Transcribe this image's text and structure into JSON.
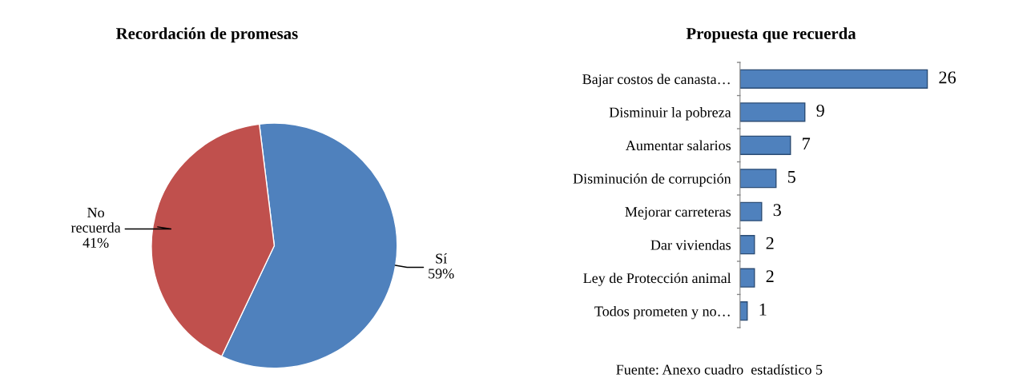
{
  "chart_data": [
    {
      "type": "pie",
      "title": "Recordación de promesas",
      "categories": [
        "Sí",
        "No recuerda"
      ],
      "values": [
        59,
        41
      ],
      "colors": [
        "#4f81bd",
        "#c0504d"
      ],
      "value_labels": [
        "59%",
        "41%"
      ]
    },
    {
      "type": "bar",
      "orientation": "horizontal",
      "title": "Propuesta que recuerda",
      "categories": [
        "Bajar costos de canasta…",
        "Disminuir la pobreza",
        "Aumentar salarios",
        "Disminución de corrupción",
        "Mejorar carreteras",
        "Dar viviendas",
        "Ley de Protección animal",
        "Todos prometen y no…"
      ],
      "values": [
        26,
        9,
        7,
        5,
        3,
        2,
        2,
        1
      ],
      "color": "#4f81bd",
      "data_labels": true,
      "annotations": [
        "Fuente: Anexo cuadro  estadístico 5"
      ]
    }
  ]
}
